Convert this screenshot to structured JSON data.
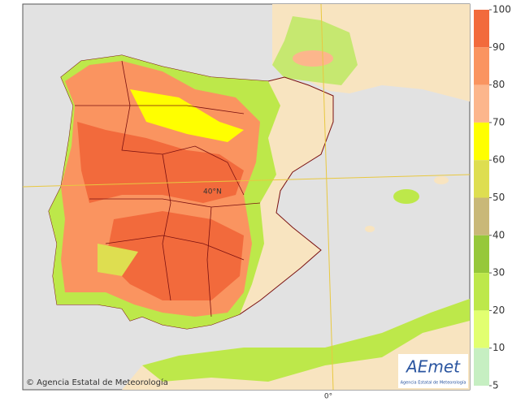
{
  "map": {
    "lat_label": "40°N",
    "lon_label": "0°",
    "credit": "© Agencia Estatal de Meteorología",
    "logo": {
      "name": "AEmet",
      "subtitle": "Agencia Estatal de Meteorología"
    }
  },
  "legend": {
    "ticks": [
      100,
      90,
      80,
      70,
      60,
      50,
      40,
      30,
      20,
      10,
      5
    ],
    "colors": [
      "#f26a3c",
      "#fa9460",
      "#fcb68c",
      "#ffff00",
      "#dede50",
      "#c9b878",
      "#96c83a",
      "#bde84a",
      "#e2ff70",
      "#c6efc2"
    ]
  }
}
